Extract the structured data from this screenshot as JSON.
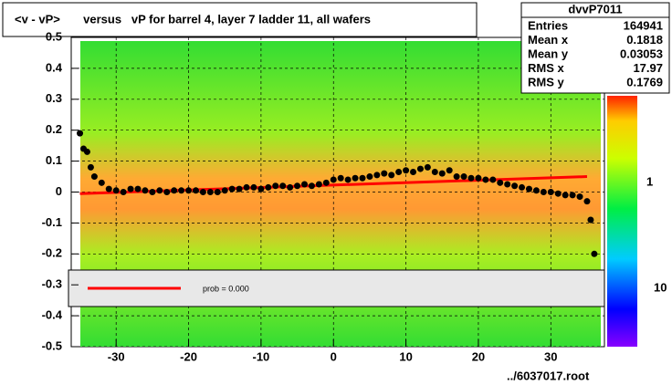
{
  "chart_data": {
    "type": "profile",
    "title": "<v - vP>       versus   vP for barrel 4, layer 7 ladder 11, all wafers",
    "footer": "../6037017.root",
    "xlim": [
      -36.2,
      37.4
    ],
    "ylim": [
      -0.5,
      0.5
    ],
    "xticks": [
      -30,
      -20,
      -10,
      0,
      10,
      20,
      30
    ],
    "yticks": [
      {
        "value": -0.5,
        "label": "-0.5"
      },
      {
        "value": -0.4,
        "label": "-0.4"
      },
      {
        "value": -0.3,
        "label": "-0.3"
      },
      {
        "value": -0.2,
        "label": "-0.2"
      },
      {
        "value": -0.1,
        "label": "-0.1"
      },
      0,
      {
        "value": 0.1,
        "label": "0.1"
      },
      {
        "value": 0.2,
        "label": "0.2"
      },
      {
        "value": 0.3,
        "label": "0.3"
      },
      {
        "value": 0.4,
        "label": "0.4"
      },
      {
        "value": 0.5,
        "label": "0.5"
      }
    ],
    "grid": true,
    "color": "#000000",
    "x": [
      -35,
      -34.5,
      -34,
      -33.5,
      -33,
      -32,
      -31,
      -30,
      -29,
      -28,
      -27,
      -26,
      -25,
      -24,
      -23,
      -22,
      -21,
      -20,
      -19,
      -18,
      -17,
      -16,
      -15,
      -14,
      -13,
      -12,
      -11,
      -10,
      -9,
      -8,
      -7,
      -6,
      -5,
      -4,
      -3,
      -2,
      -1,
      0,
      1,
      2,
      3,
      4,
      5,
      6,
      7,
      8,
      9,
      10,
      11,
      12,
      13,
      14,
      15,
      16,
      17,
      18,
      19,
      20,
      21,
      22,
      23,
      24,
      25,
      26,
      27,
      28,
      29,
      30,
      31,
      32,
      33,
      34,
      35,
      35.5,
      36
    ],
    "values": [
      0.19,
      0.14,
      0.13,
      0.08,
      0.05,
      0.03,
      0.01,
      0.005,
      0.0,
      0.01,
      0.01,
      0.005,
      0.0,
      0.005,
      0.0,
      0.005,
      0.005,
      0.005,
      0.005,
      0.0,
      0.0,
      0.0,
      0.005,
      0.01,
      0.01,
      0.015,
      0.015,
      0.01,
      0.015,
      0.02,
      0.02,
      0.015,
      0.02,
      0.025,
      0.02,
      0.025,
      0.03,
      0.04,
      0.045,
      0.04,
      0.045,
      0.045,
      0.05,
      0.055,
      0.06,
      0.055,
      0.065,
      0.07,
      0.065,
      0.075,
      0.08,
      0.065,
      0.06,
      0.07,
      0.05,
      0.05,
      0.045,
      0.045,
      0.04,
      0.04,
      0.03,
      0.025,
      0.02,
      0.015,
      0.01,
      0.005,
      0.0,
      0.0,
      -0.005,
      -0.01,
      -0.01,
      -0.015,
      -0.03,
      -0.09,
      -0.2
    ],
    "fit": {
      "color": "#ff0000",
      "x": [
        -35,
        35
      ],
      "values": [
        -0.005,
        0.05
      ]
    },
    "legend_text": "prob = 0.000",
    "color_scale_labels": [
      "1",
      "10"
    ],
    "stats": {
      "name": "dvvP7011",
      "rows": [
        [
          "Entries",
          164941
        ],
        [
          "Mean x",
          0.1818
        ],
        [
          "Mean y",
          0.03053
        ],
        [
          "RMS x",
          17.97
        ],
        [
          "RMS y",
          0.1769
        ]
      ]
    }
  }
}
